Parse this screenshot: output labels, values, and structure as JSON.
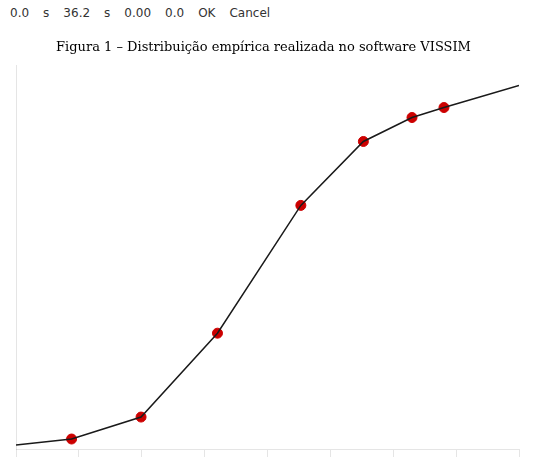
{
  "chart_data": {
    "type": "line",
    "title": "Figura 1 – Distribuição empírica realizada no software VISSIM",
    "annotations": [
      "0.0",
      "s",
      "36.2",
      "s",
      "0.00",
      "0.0",
      "OK",
      "Cancel"
    ],
    "series": [
      {
        "type": "line",
        "color": "#1a1a1a",
        "marker": "none",
        "x": [
          0.0,
          4.0,
          9.0,
          14.5,
          20.5,
          25.0,
          28.5,
          30.8,
          36.2
        ],
        "values": [
          0.0,
          0.015,
          0.07,
          0.28,
          0.6,
          0.76,
          0.82,
          0.845,
          0.9
        ]
      },
      {
        "type": "scatter",
        "color": "#cc0000",
        "marker": "circle",
        "x": [
          4.0,
          9.0,
          14.5,
          20.5,
          25.0,
          28.5,
          30.8
        ],
        "values": [
          0.015,
          0.07,
          0.28,
          0.6,
          0.76,
          0.82,
          0.845
        ]
      }
    ],
    "xlim": [
      0.0,
      36.2
    ],
    "xticks": [
      0,
      4.525,
      9.05,
      13.575,
      18.1,
      22.625,
      27.15,
      31.675,
      36.2
    ],
    "ylim": [
      -0.01,
      0.95
    ],
    "yticks": [],
    "tick_labels": false,
    "grid": false
  }
}
